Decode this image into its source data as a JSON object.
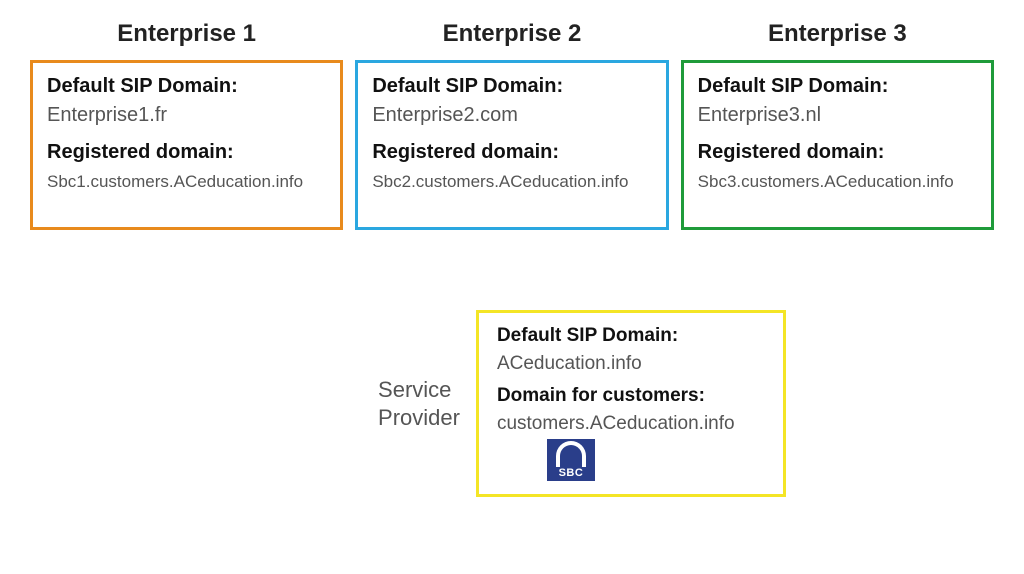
{
  "diagram": {
    "type": "infographic",
    "background_color": "#ffffff",
    "title_fontsize": 24,
    "label_fontsize": 20,
    "value_fontsize": 20,
    "small_value_fontsize": 17,
    "box_border_width": 3,
    "enterprises": [
      {
        "title": "Enterprise 1",
        "border_color": "#e88a1c",
        "sip_label": "Default SIP Domain:",
        "sip_value": "Enterprise1.fr",
        "reg_label": "Registered domain:",
        "reg_value": "Sbc1.customers.ACeducation.info"
      },
      {
        "title": "Enterprise 2",
        "border_color": "#2aa7e0",
        "sip_label": "Default SIP Domain:",
        "sip_value": "Enterprise2.com",
        "reg_label": "Registered domain:",
        "reg_value": "Sbc2.customers.ACeducation.info"
      },
      {
        "title": "Enterprise 3",
        "border_color": "#1f9b3a",
        "sip_label": "Default SIP Domain:",
        "sip_value": "Enterprise3.nl",
        "reg_label": "Registered domain:",
        "reg_value": "Sbc3.customers.ACeducation.info"
      }
    ],
    "service_provider": {
      "side_label_line1": "Service",
      "side_label_line2": "Provider",
      "border_color": "#f4e526",
      "sip_label": "Default SIP Domain:",
      "sip_value": "ACeducation.info",
      "cust_label": "Domain for customers:",
      "cust_value": "customers.ACeducation.info",
      "icon_label": "SBC",
      "icon_bg": "#2a3e8a",
      "icon_fg": "#ffffff"
    }
  }
}
